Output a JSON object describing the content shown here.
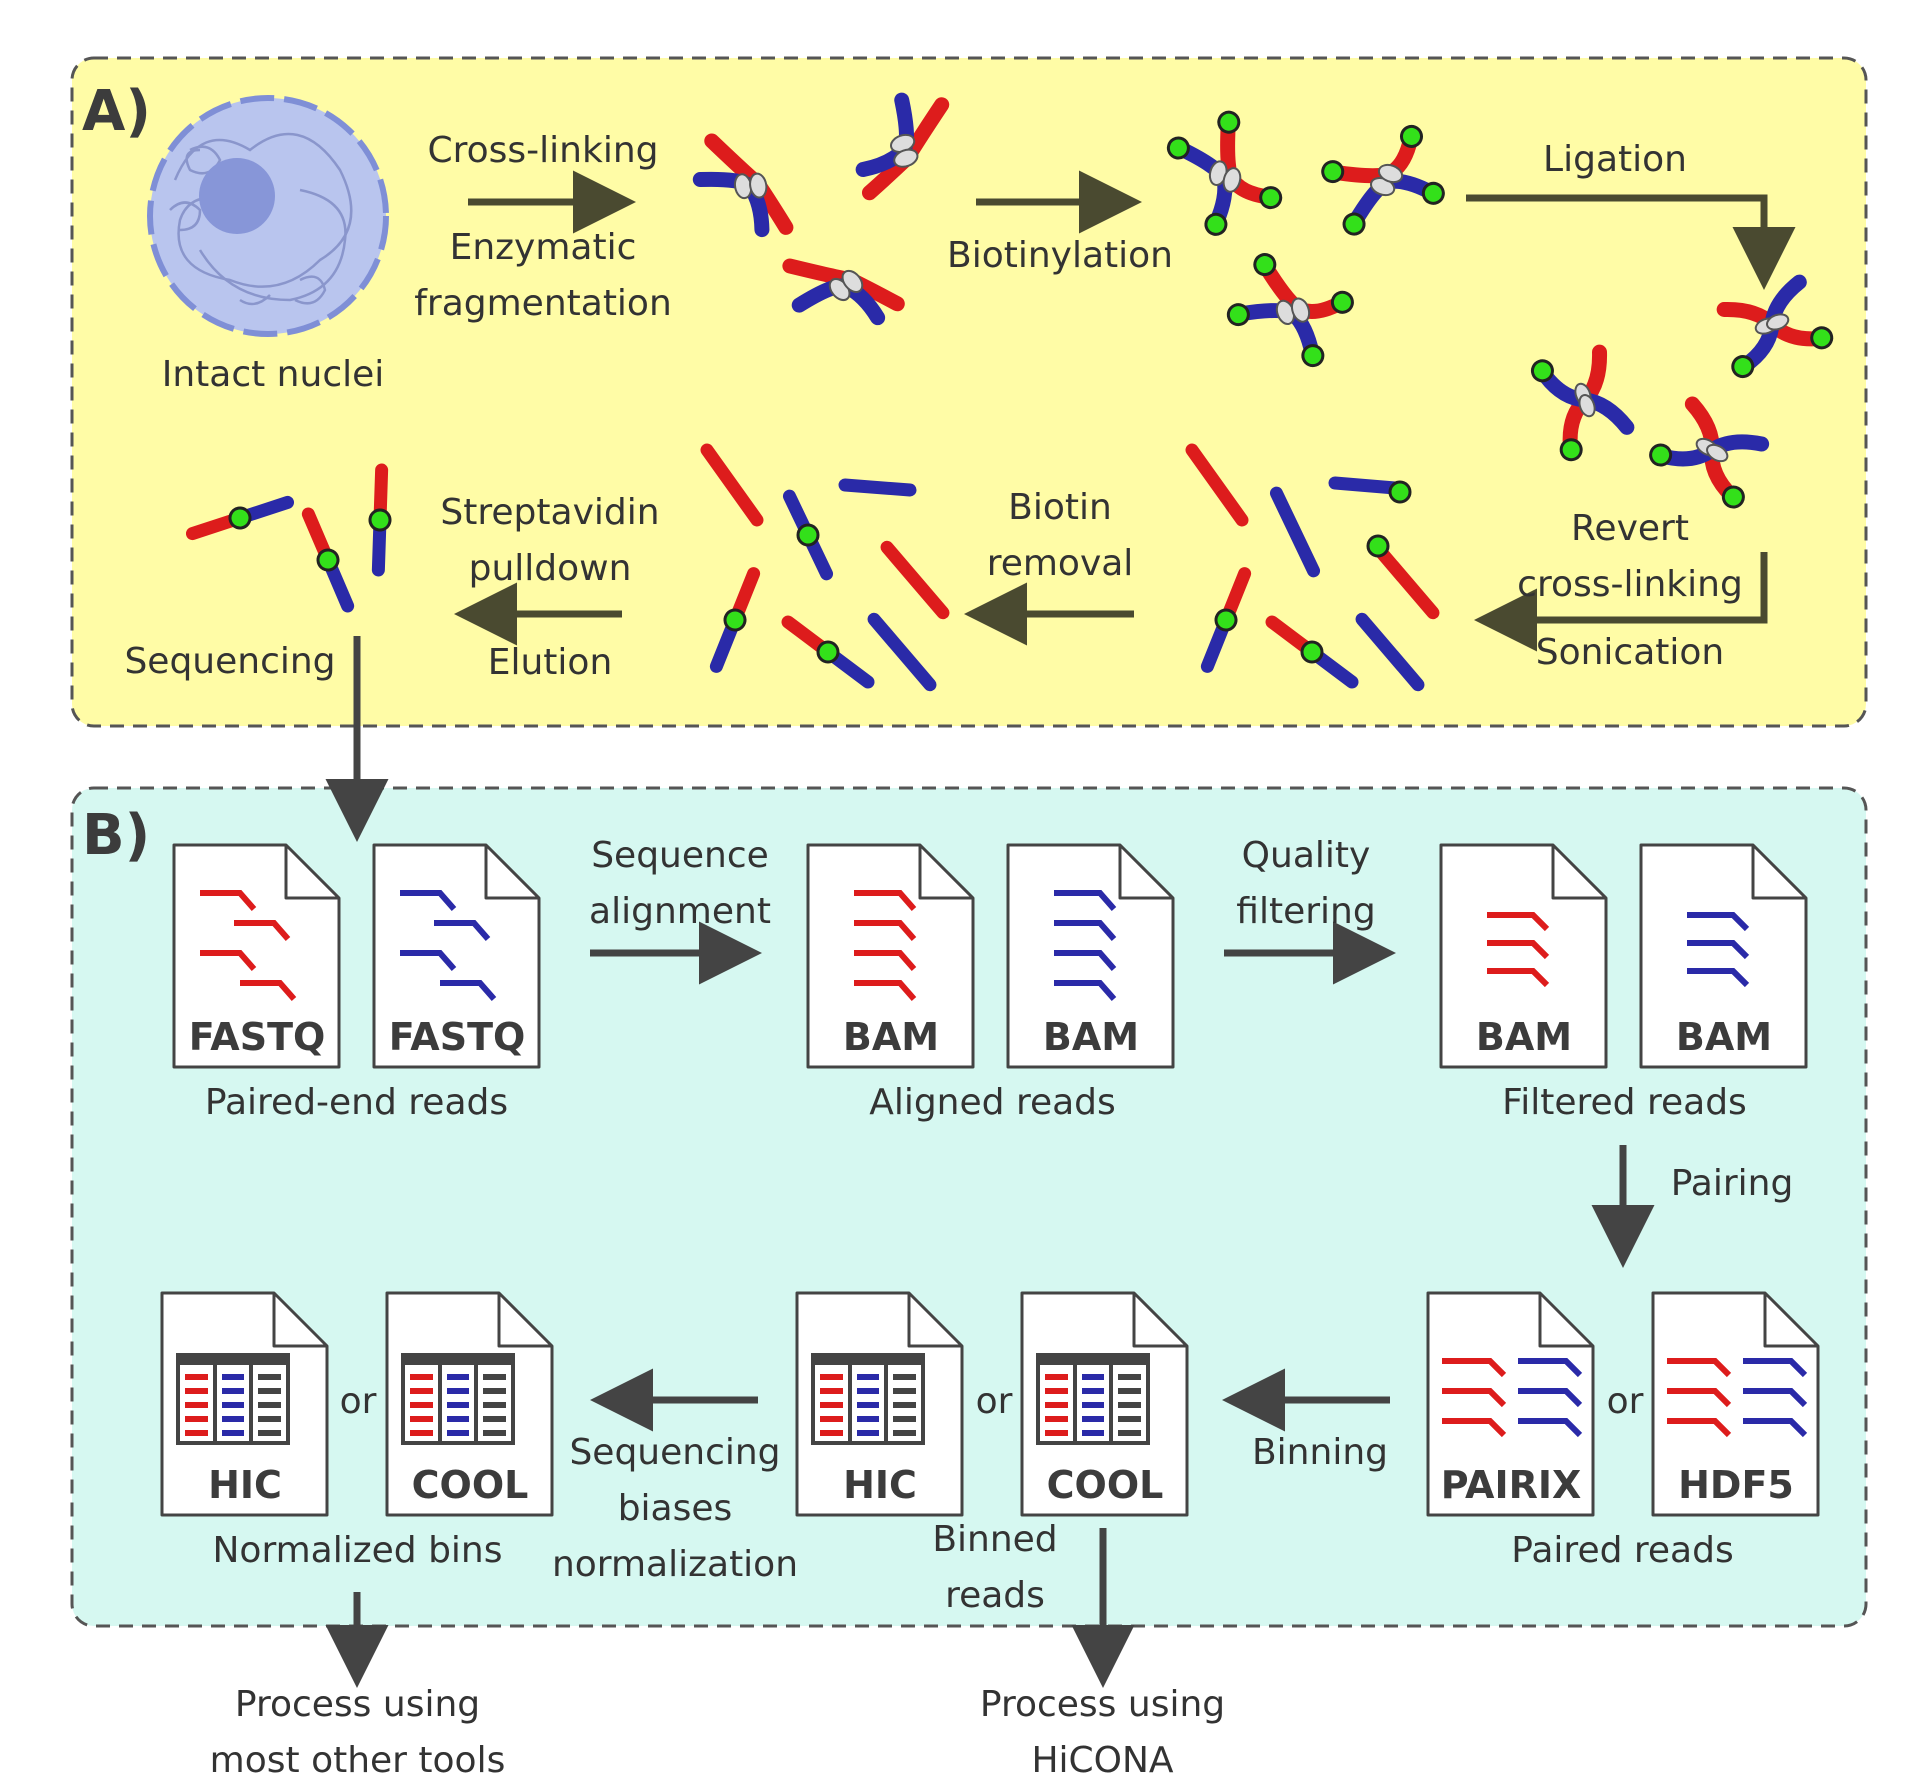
{
  "panel_a": {
    "letter": "A)",
    "nuclei_label": "Intact nuclei",
    "step_crosslink": [
      "Cross-linking",
      "Enzymatic",
      "fragmentation"
    ],
    "step_biotinylation": "Biotinylation",
    "step_ligation": "Ligation",
    "step_revert": [
      "Revert",
      "cross-linking",
      "Sonication"
    ],
    "step_biotin_removal": [
      "Biotin",
      "removal"
    ],
    "step_streptavidin": [
      "Streptavidin",
      "pulldown",
      "Elution"
    ],
    "step_sequencing": "Sequencing"
  },
  "panel_b": {
    "letter": "B)",
    "files": {
      "fastq_1": "FASTQ",
      "fastq_2": "FASTQ",
      "bam_aligned_1": "BAM",
      "bam_aligned_2": "BAM",
      "bam_filtered_1": "BAM",
      "bam_filtered_2": "BAM",
      "pairix": "PAIRIX",
      "hdf5": "HDF5",
      "hic_binned": "HIC",
      "cool_binned": "COOL",
      "hic_normalized": "HIC",
      "cool_normalized": "COOL"
    },
    "or_word": "or",
    "paired_end_reads": "Paired-end reads",
    "sequence_alignment": [
      "Sequence",
      "alignment"
    ],
    "aligned_reads": "Aligned reads",
    "quality_filtering": [
      "Quality",
      "filtering"
    ],
    "filtered_reads": "Filtered reads",
    "pairing": "Pairing",
    "paired_reads": "Paired reads",
    "binning": "Binning",
    "binned_reads": [
      "Binned",
      "reads"
    ],
    "bias_normalization": [
      "Sequencing",
      "biases",
      "normalization"
    ],
    "normalized_bins": "Normalized bins"
  },
  "outputs": {
    "other_tools": [
      "Process using",
      "most other tools"
    ],
    "hicona": [
      "Process using",
      "HiCONA"
    ]
  },
  "colors": {
    "panel_a_fill": "#fffca6",
    "panel_b_fill": "#d6f8f1",
    "red": "#dd1c1c",
    "blue": "#2a2aa8",
    "green": "#33e01a",
    "arrow_a": "#4a4a30",
    "arrow_b": "#444444",
    "text": "#333333"
  }
}
